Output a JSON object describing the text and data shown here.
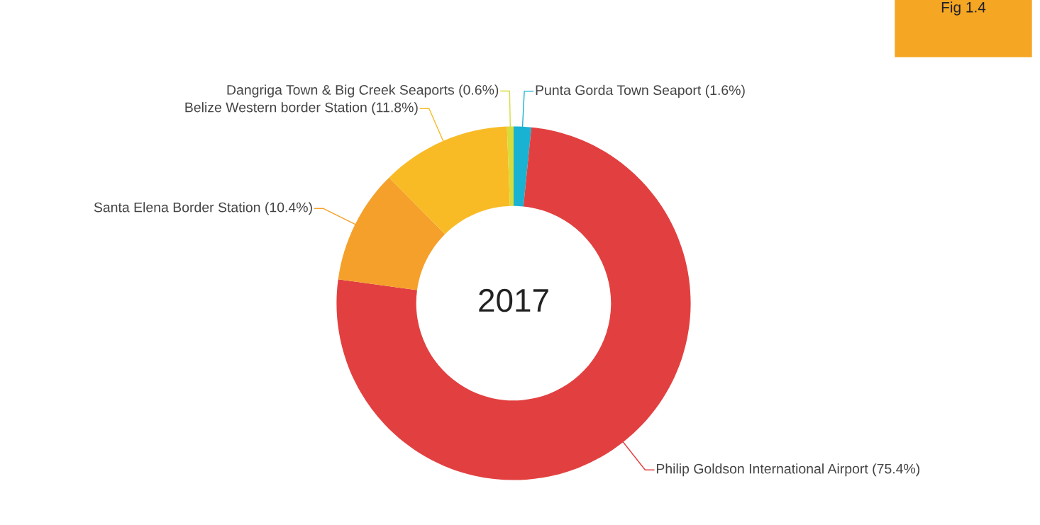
{
  "chart_data": {
    "type": "donut",
    "categories": [
      "Punta Gorda Town Seaport",
      "Philip Goldson International Airport",
      "Santa Elena Border Station",
      "Belize Western border Station",
      "Dangriga Town & Big Creek Seaports"
    ],
    "values": [
      1.6,
      75.4,
      10.4,
      11.8,
      0.6
    ],
    "value_labels": [
      "(1.6%)",
      "(75.4%)",
      "(10.4%)",
      "(11.8%)",
      "(0.6%)"
    ],
    "colors": [
      "#1ab2d2",
      "#e24040",
      "#f5a02a",
      "#f8bb26",
      "#d6dc3c"
    ],
    "annotations": [
      "2017",
      "Fig 1.4"
    ]
  }
}
